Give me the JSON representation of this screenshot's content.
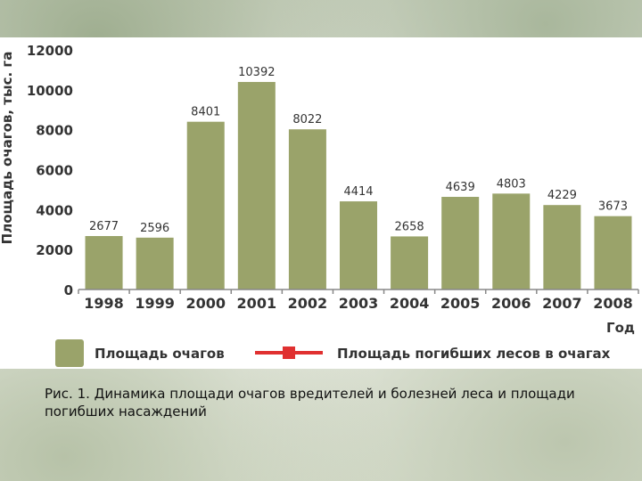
{
  "chart_data": {
    "type": "bar",
    "categories": [
      "1998",
      "1999",
      "2000",
      "2001",
      "2002",
      "2003",
      "2004",
      "2005",
      "2006",
      "2007",
      "2008"
    ],
    "series": [
      {
        "name": "Площадь очагов",
        "values": [
          2677,
          2596,
          8401,
          10392,
          8022,
          4414,
          2658,
          4639,
          4803,
          4229,
          3673
        ]
      }
    ],
    "value_labels": [
      "2677",
      "2596",
      "8401",
      "10392",
      "8022",
      "4414",
      "2658",
      "4639",
      "4803",
      "4229",
      "3673"
    ],
    "ylabel": "Площадь очагов, тыс. га",
    "xlabel": "Год",
    "ylim": [
      0,
      12000
    ],
    "yticks": [
      "0",
      "2000",
      "4000",
      "6000",
      "8000",
      "10000",
      "12000"
    ],
    "yticks_values": [
      0,
      2000,
      4000,
      6000,
      8000,
      10000,
      12000
    ],
    "grid": false,
    "legend": {
      "placement": "bottom",
      "entries": [
        "Площадь очагов",
        "Площадь погибших лесов в очагах"
      ]
    },
    "colors": {
      "bar": "#9aa36a",
      "legend_line": "#e03030",
      "axis": "#888888",
      "text": "#333333"
    }
  },
  "caption": "Рис. 1. Динамика площади очагов вредителей и болезней леса и площади погибших насаждений"
}
